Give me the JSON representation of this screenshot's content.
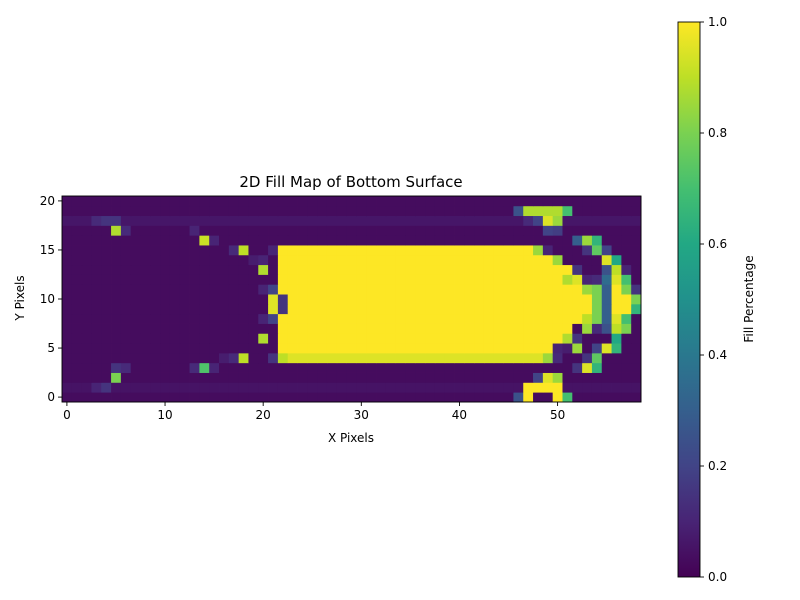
{
  "chart_data": {
    "type": "heatmap",
    "title": "2D Fill Map of Bottom Surface",
    "xlabel": "X Pixels",
    "ylabel": "Y Pixels",
    "grid": false,
    "colormap": "viridis",
    "x_range": [
      -0.5,
      58.5
    ],
    "y_range": [
      -0.5,
      20.5
    ],
    "x_ticks": [
      0,
      10,
      20,
      30,
      40,
      50
    ],
    "y_ticks": [
      0,
      5,
      10,
      15,
      20
    ],
    "colorbar": {
      "label": "Fill Percentage",
      "range": [
        0.0,
        1.0
      ],
      "ticks": [
        0.0,
        0.2,
        0.4,
        0.6,
        0.8,
        1.0
      ],
      "tick_labels": [
        "0.0",
        "0.2",
        "0.4",
        "0.6",
        "0.8",
        "1.0"
      ]
    },
    "grid_size": {
      "cols": 59,
      "rows": 21
    },
    "background_value": 0.03,
    "fills": [
      {
        "row": 4,
        "from": 22,
        "to": 47,
        "value": 0.95
      },
      {
        "row": 4,
        "from": 48,
        "to": 48,
        "value": 0.95
      },
      {
        "row": 5,
        "from": 22,
        "to": 49,
        "value": 1.0
      },
      {
        "row": 6,
        "from": 22,
        "to": 50,
        "value": 1.0
      },
      {
        "row": 7,
        "from": 22,
        "to": 51,
        "value": 1.0
      },
      {
        "row": 8,
        "from": 22,
        "to": 52,
        "value": 1.0
      },
      {
        "row": 9,
        "from": 22,
        "to": 53,
        "value": 1.0
      },
      {
        "row": 10,
        "from": 22,
        "to": 53,
        "value": 1.0
      },
      {
        "row": 11,
        "from": 22,
        "to": 53,
        "value": 1.0
      },
      {
        "row": 12,
        "from": 22,
        "to": 52,
        "value": 1.0
      },
      {
        "row": 13,
        "from": 22,
        "to": 51,
        "value": 1.0
      },
      {
        "row": 14,
        "from": 22,
        "to": 50,
        "value": 1.0
      },
      {
        "row": 15,
        "from": 22,
        "to": 48,
        "value": 1.0
      },
      {
        "row": 1,
        "from": 47,
        "to": 50,
        "value": 1.0
      },
      {
        "row": 19,
        "from": 47,
        "to": 50,
        "value": 0.88
      },
      {
        "row": 9,
        "from": 56,
        "to": 57,
        "value": 1.0
      },
      {
        "row": 10,
        "from": 56,
        "to": 57,
        "value": 1.0
      },
      {
        "row": 11,
        "from": 56,
        "to": 57,
        "value": 1.0
      }
    ],
    "cells": [
      {
        "x": 21,
        "y": 10,
        "value": 0.95
      },
      {
        "x": 21,
        "y": 9,
        "value": 0.95
      },
      {
        "x": 22,
        "y": 10,
        "value": 0.15
      },
      {
        "x": 22,
        "y": 9,
        "value": 0.15
      },
      {
        "x": 20,
        "y": 13,
        "value": 0.88
      },
      {
        "x": 20,
        "y": 6,
        "value": 0.88
      },
      {
        "x": 18,
        "y": 15,
        "value": 0.9
      },
      {
        "x": 18,
        "y": 4,
        "value": 0.9
      },
      {
        "x": 14,
        "y": 16,
        "value": 0.92
      },
      {
        "x": 14,
        "y": 3,
        "value": 0.72
      },
      {
        "x": 5,
        "y": 17,
        "value": 0.88
      },
      {
        "x": 5,
        "y": 2,
        "value": 0.8
      },
      {
        "x": 20,
        "y": 14,
        "value": 0.1
      },
      {
        "x": 19,
        "y": 14,
        "value": 0.08
      },
      {
        "x": 17,
        "y": 15,
        "value": 0.12
      },
      {
        "x": 17,
        "y": 4,
        "value": 0.12
      },
      {
        "x": 21,
        "y": 11,
        "value": 0.2
      },
      {
        "x": 21,
        "y": 8,
        "value": 0.2
      },
      {
        "x": 20,
        "y": 11,
        "value": 0.1
      },
      {
        "x": 20,
        "y": 8,
        "value": 0.1
      },
      {
        "x": 21,
        "y": 15,
        "value": 0.1
      },
      {
        "x": 21,
        "y": 4,
        "value": 0.15
      },
      {
        "x": 22,
        "y": 4,
        "value": 0.9
      },
      {
        "x": 49,
        "y": 18,
        "value": 0.95
      },
      {
        "x": 50,
        "y": 18,
        "value": 0.85
      },
      {
        "x": 48,
        "y": 18,
        "value": 0.2
      },
      {
        "x": 47,
        "y": 18,
        "value": 0.12
      },
      {
        "x": 46,
        "y": 19,
        "value": 0.25
      },
      {
        "x": 51,
        "y": 19,
        "value": 0.7
      },
      {
        "x": 49,
        "y": 17,
        "value": 0.2
      },
      {
        "x": 50,
        "y": 17,
        "value": 0.18
      },
      {
        "x": 48,
        "y": 2,
        "value": 0.2
      },
      {
        "x": 49,
        "y": 2,
        "value": 0.95
      },
      {
        "x": 50,
        "y": 2,
        "value": 0.85
      },
      {
        "x": 46,
        "y": 0,
        "value": 0.25
      },
      {
        "x": 51,
        "y": 0,
        "value": 0.7
      },
      {
        "x": 47,
        "y": 0,
        "value": 1.0
      },
      {
        "x": 50,
        "y": 0,
        "value": 1.0
      },
      {
        "x": 48,
        "y": 15,
        "value": 0.85
      },
      {
        "x": 49,
        "y": 15,
        "value": 0.1
      },
      {
        "x": 49,
        "y": 14,
        "value": 1.0
      },
      {
        "x": 50,
        "y": 14,
        "value": 0.85
      },
      {
        "x": 51,
        "y": 13,
        "value": 1.0
      },
      {
        "x": 51,
        "y": 12,
        "value": 0.88
      },
      {
        "x": 52,
        "y": 12,
        "value": 0.95
      },
      {
        "x": 52,
        "y": 13,
        "value": 0.15
      },
      {
        "x": 53,
        "y": 11,
        "value": 0.85
      },
      {
        "x": 53,
        "y": 12,
        "value": 0.1
      },
      {
        "x": 54,
        "y": 10,
        "value": 0.8
      },
      {
        "x": 54,
        "y": 11,
        "value": 0.8
      },
      {
        "x": 54,
        "y": 9,
        "value": 0.8
      },
      {
        "x": 54,
        "y": 8,
        "value": 0.8
      },
      {
        "x": 54,
        "y": 12,
        "value": 0.12
      },
      {
        "x": 54,
        "y": 7,
        "value": 0.12
      },
      {
        "x": 55,
        "y": 10,
        "value": 0.3
      },
      {
        "x": 55,
        "y": 11,
        "value": 0.3
      },
      {
        "x": 55,
        "y": 9,
        "value": 0.3
      },
      {
        "x": 55,
        "y": 12,
        "value": 0.35
      },
      {
        "x": 55,
        "y": 8,
        "value": 0.3
      },
      {
        "x": 55,
        "y": 7,
        "value": 0.25
      },
      {
        "x": 55,
        "y": 13,
        "value": 0.25
      },
      {
        "x": 56,
        "y": 12,
        "value": 0.95
      },
      {
        "x": 56,
        "y": 8,
        "value": 0.95
      },
      {
        "x": 56,
        "y": 13,
        "value": 0.9
      },
      {
        "x": 56,
        "y": 7,
        "value": 0.9
      },
      {
        "x": 56,
        "y": 14,
        "value": 0.6
      },
      {
        "x": 56,
        "y": 6,
        "value": 0.6
      },
      {
        "x": 57,
        "y": 12,
        "value": 0.7
      },
      {
        "x": 57,
        "y": 8,
        "value": 0.7
      },
      {
        "x": 57,
        "y": 11,
        "value": 0.8
      },
      {
        "x": 57,
        "y": 13,
        "value": 0.1
      },
      {
        "x": 57,
        "y": 7,
        "value": 0.8
      },
      {
        "x": 58,
        "y": 10,
        "value": 0.8
      },
      {
        "x": 58,
        "y": 9,
        "value": 0.65
      },
      {
        "x": 58,
        "y": 11,
        "value": 0.15
      },
      {
        "x": 52,
        "y": 16,
        "value": 0.3
      },
      {
        "x": 53,
        "y": 16,
        "value": 0.85
      },
      {
        "x": 54,
        "y": 16,
        "value": 0.65
      },
      {
        "x": 53,
        "y": 15,
        "value": 0.15
      },
      {
        "x": 54,
        "y": 15,
        "value": 0.75
      },
      {
        "x": 55,
        "y": 14,
        "value": 0.95
      },
      {
        "x": 55,
        "y": 15,
        "value": 0.2
      },
      {
        "x": 52,
        "y": 3,
        "value": 0.15
      },
      {
        "x": 53,
        "y": 3,
        "value": 0.95
      },
      {
        "x": 54,
        "y": 3,
        "value": 0.65
      },
      {
        "x": 53,
        "y": 4,
        "value": 0.15
      },
      {
        "x": 54,
        "y": 4,
        "value": 0.75
      },
      {
        "x": 55,
        "y": 5,
        "value": 0.95
      },
      {
        "x": 54,
        "y": 5,
        "value": 0.2
      },
      {
        "x": 56,
        "y": 5,
        "value": 0.65
      },
      {
        "x": 52,
        "y": 5,
        "value": 0.85
      },
      {
        "x": 52,
        "y": 6,
        "value": 0.15
      },
      {
        "x": 51,
        "y": 6,
        "value": 0.88
      },
      {
        "x": 51,
        "y": 7,
        "value": 1.0
      },
      {
        "x": 50,
        "y": 5,
        "value": 0.1
      },
      {
        "x": 51,
        "y": 5,
        "value": 0.08
      },
      {
        "x": 49,
        "y": 4,
        "value": 0.85
      },
      {
        "x": 50,
        "y": 4,
        "value": 0.12
      },
      {
        "x": 53,
        "y": 7,
        "value": 0.85
      },
      {
        "x": 53,
        "y": 8,
        "value": 0.9
      },
      {
        "x": 4,
        "y": 18,
        "value": 0.15
      },
      {
        "x": 3,
        "y": 18,
        "value": 0.12
      },
      {
        "x": 4,
        "y": 1,
        "value": 0.15
      },
      {
        "x": 3,
        "y": 1,
        "value": 0.1
      },
      {
        "x": 13,
        "y": 17,
        "value": 0.1
      },
      {
        "x": 13,
        "y": 3,
        "value": 0.12
      },
      {
        "x": 15,
        "y": 16,
        "value": 0.1
      },
      {
        "x": 15,
        "y": 3,
        "value": 0.1
      },
      {
        "x": 16,
        "y": 4,
        "value": 0.08
      },
      {
        "x": 6,
        "y": 17,
        "value": 0.12
      },
      {
        "x": 6,
        "y": 3,
        "value": 0.12
      },
      {
        "x": 5,
        "y": 3,
        "value": 0.15
      },
      {
        "x": 5,
        "y": 18,
        "value": 0.15
      }
    ]
  }
}
